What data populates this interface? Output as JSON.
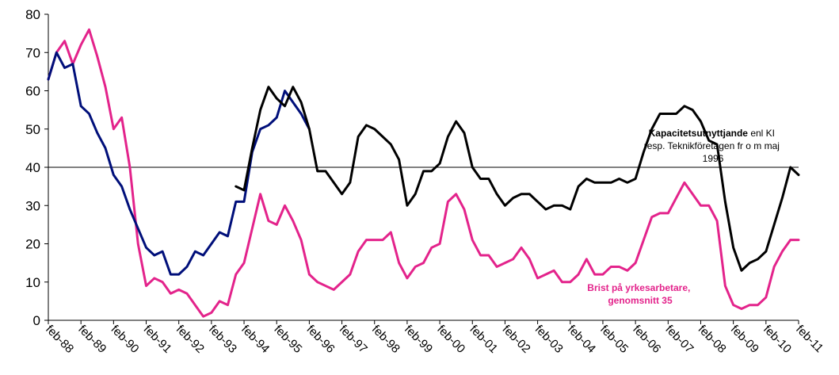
{
  "chart_data": {
    "type": "line",
    "y_ticks": [
      0,
      10,
      20,
      30,
      40,
      50,
      60,
      70,
      80
    ],
    "ylim": [
      0,
      80
    ],
    "x_categories": [
      "feb-88",
      "feb-89",
      "feb-90",
      "feb-91",
      "feb-92",
      "feb-93",
      "feb-94",
      "feb-95",
      "feb-96",
      "feb-97",
      "feb-98",
      "feb-99",
      "feb-00",
      "feb-01",
      "feb-02",
      "feb-03",
      "feb-04",
      "feb-05",
      "feb-06",
      "feb-07",
      "feb-08",
      "feb-09",
      "feb-10",
      "feb-11"
    ],
    "quarters_per_label": 4,
    "reference_line": 40,
    "grid": false,
    "annotations": [
      {
        "id": "kapacitet",
        "bold": "Kapacitetsutnyttjande",
        "rest": " enl KI",
        "line2": "resp. Teknikföretagen fr o m maj",
        "line3": "1996",
        "color": "#000000"
      },
      {
        "id": "brist",
        "line1": "Brist på yrkesarbetare,",
        "line2": "genomsnitt 35",
        "color": "#e3238b"
      }
    ],
    "series": [
      {
        "name": "",
        "color": "#e3238b",
        "start_index": 0,
        "values": [
          63,
          70,
          73,
          67,
          72,
          76,
          69,
          61,
          50,
          53,
          40,
          20,
          9,
          11,
          10,
          7,
          8,
          7,
          4,
          1,
          2,
          5,
          4,
          12,
          15,
          24,
          33,
          26,
          25,
          30,
          26,
          21,
          12,
          10,
          9,
          8,
          10,
          12,
          18,
          21,
          21,
          21,
          23,
          15,
          11,
          14,
          15,
          19,
          20,
          31,
          33,
          29,
          21,
          17,
          17,
          14,
          15,
          16,
          19,
          16,
          11,
          12,
          13,
          10,
          10,
          12,
          16,
          12,
          12,
          14,
          14,
          13,
          15,
          21,
          27,
          28,
          28,
          32,
          36,
          33,
          30,
          30,
          26,
          9,
          4,
          3,
          4,
          4,
          6,
          14,
          18,
          21,
          21
        ]
      },
      {
        "name": "",
        "color": "#000f7a",
        "start_index": 0,
        "values": [
          63,
          70,
          66,
          67,
          56,
          54,
          49,
          45,
          38,
          35,
          29,
          24,
          19,
          17,
          18,
          12,
          12,
          14,
          18,
          17,
          20,
          23,
          22,
          31,
          31,
          44,
          50,
          51,
          53,
          60,
          57,
          54,
          50
        ]
      },
      {
        "name": "",
        "color": "#000000",
        "start_index": 23,
        "values": [
          35,
          34,
          45,
          55,
          61,
          58,
          56,
          61,
          57,
          50,
          39,
          39,
          36,
          33,
          36,
          48,
          51,
          50,
          48,
          46,
          42,
          30,
          33,
          39,
          39,
          41,
          48,
          52,
          49,
          40,
          37,
          37,
          33,
          30,
          32,
          33,
          33,
          31,
          29,
          30,
          30,
          29,
          35,
          37,
          36,
          36,
          36,
          37,
          36,
          37,
          44,
          50,
          54,
          54,
          54,
          56,
          55,
          52,
          47,
          46,
          31,
          19,
          13,
          15,
          16,
          18,
          25,
          32,
          40,
          38
        ]
      }
    ]
  }
}
